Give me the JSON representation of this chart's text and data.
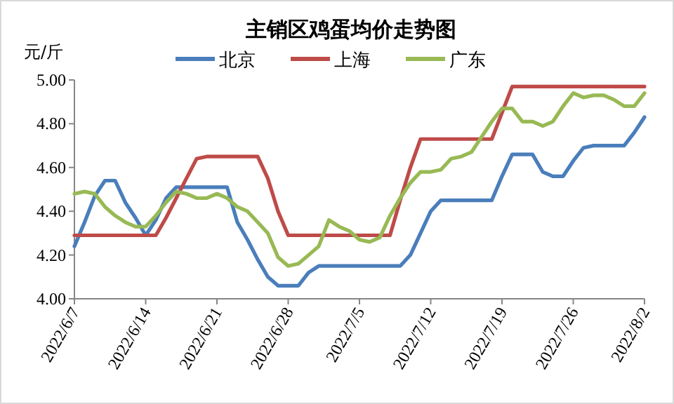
{
  "chart_data": {
    "type": "line",
    "title": "主销区鸡蛋均价走势图",
    "ylabel": "元/斤",
    "legend": "top",
    "grid": false,
    "x": [
      "2022-06-07",
      "2022-06-08",
      "2022-06-09",
      "2022-06-10",
      "2022-06-11",
      "2022-06-12",
      "2022-06-13",
      "2022-06-14",
      "2022-06-15",
      "2022-06-16",
      "2022-06-17",
      "2022-06-18",
      "2022-06-19",
      "2022-06-20",
      "2022-06-21",
      "2022-06-22",
      "2022-06-23",
      "2022-06-24",
      "2022-06-25",
      "2022-06-26",
      "2022-06-27",
      "2022-06-28",
      "2022-06-29",
      "2022-06-30",
      "2022-07-01",
      "2022-07-02",
      "2022-07-03",
      "2022-07-04",
      "2022-07-05",
      "2022-07-06",
      "2022-07-07",
      "2022-07-08",
      "2022-07-09",
      "2022-07-10",
      "2022-07-11",
      "2022-07-12",
      "2022-07-13",
      "2022-07-14",
      "2022-07-15",
      "2022-07-16",
      "2022-07-17",
      "2022-07-18",
      "2022-07-19",
      "2022-07-20",
      "2022-07-21",
      "2022-07-22",
      "2022-07-23",
      "2022-07-24",
      "2022-07-25",
      "2022-07-26",
      "2022-07-27",
      "2022-07-28",
      "2022-07-29",
      "2022-07-30",
      "2022-07-31",
      "2022-08-01",
      "2022-08-02"
    ],
    "series": [
      {
        "name": "北京",
        "color": "#4a7ebb",
        "values": [
          4.24,
          4.35,
          4.47,
          4.54,
          4.54,
          4.44,
          4.37,
          4.29,
          4.36,
          4.46,
          4.51,
          4.51,
          4.51,
          4.51,
          4.51,
          4.51,
          4.35,
          4.27,
          4.18,
          4.1,
          4.06,
          4.06,
          4.06,
          4.12,
          4.15,
          4.15,
          4.15,
          4.15,
          4.15,
          4.15,
          4.15,
          4.15,
          4.15,
          4.2,
          4.3,
          4.4,
          4.45,
          4.45,
          4.45,
          4.45,
          4.45,
          4.45,
          4.56,
          4.66,
          4.66,
          4.66,
          4.58,
          4.56,
          4.56,
          4.63,
          4.69,
          4.7,
          4.7,
          4.7,
          4.7,
          4.76,
          4.83
        ]
      },
      {
        "name": "上海",
        "color": "#be4b48",
        "values": [
          4.29,
          4.29,
          4.29,
          4.29,
          4.29,
          4.29,
          4.29,
          4.29,
          4.29,
          4.37,
          4.46,
          4.55,
          4.64,
          4.65,
          4.65,
          4.65,
          4.65,
          4.65,
          4.65,
          4.55,
          4.4,
          4.29,
          4.29,
          4.29,
          4.29,
          4.29,
          4.29,
          4.29,
          4.29,
          4.29,
          4.29,
          4.29,
          4.45,
          4.6,
          4.73,
          4.73,
          4.73,
          4.73,
          4.73,
          4.73,
          4.73,
          4.73,
          4.85,
          4.97,
          4.97,
          4.97,
          4.97,
          4.97,
          4.97,
          4.97,
          4.97,
          4.97,
          4.97,
          4.97,
          4.97,
          4.97,
          4.97
        ]
      },
      {
        "name": "广东",
        "color": "#98b954",
        "values": [
          4.48,
          4.49,
          4.48,
          4.42,
          4.38,
          4.35,
          4.33,
          4.33,
          4.38,
          4.44,
          4.49,
          4.48,
          4.46,
          4.46,
          4.48,
          4.46,
          4.42,
          4.4,
          4.35,
          4.3,
          4.19,
          4.15,
          4.16,
          4.2,
          4.24,
          4.36,
          4.33,
          4.31,
          4.27,
          4.26,
          4.28,
          4.38,
          4.46,
          4.53,
          4.58,
          4.58,
          4.59,
          4.64,
          4.65,
          4.67,
          4.74,
          4.81,
          4.87,
          4.87,
          4.81,
          4.81,
          4.79,
          4.81,
          4.88,
          4.94,
          4.92,
          4.93,
          4.93,
          4.91,
          4.88,
          4.88,
          4.94
        ]
      }
    ],
    "xlim": [
      "2022-06-07",
      "2022-08-02"
    ],
    "xticks": [
      {
        "value": "2022-06-07",
        "label": "2022/6/7"
      },
      {
        "value": "2022-06-14",
        "label": "2022/6/14"
      },
      {
        "value": "2022-06-21",
        "label": "2022/6/21"
      },
      {
        "value": "2022-06-28",
        "label": "2022/6/28"
      },
      {
        "value": "2022-07-05",
        "label": "2022/7/5"
      },
      {
        "value": "2022-07-12",
        "label": "2022/7/12"
      },
      {
        "value": "2022-07-19",
        "label": "2022/7/19"
      },
      {
        "value": "2022-07-26",
        "label": "2022/7/26"
      },
      {
        "value": "2022-08-02",
        "label": "2022/8/2"
      }
    ],
    "ylim": [
      4.0,
      5.0
    ],
    "yticks": [
      {
        "value": 4.0,
        "label": "4.00"
      },
      {
        "value": 4.2,
        "label": "4.20"
      },
      {
        "value": 4.4,
        "label": "4.40"
      },
      {
        "value": 4.6,
        "label": "4.60"
      },
      {
        "value": 4.8,
        "label": "4.80"
      },
      {
        "value": 5.0,
        "label": "5.00"
      }
    ]
  }
}
